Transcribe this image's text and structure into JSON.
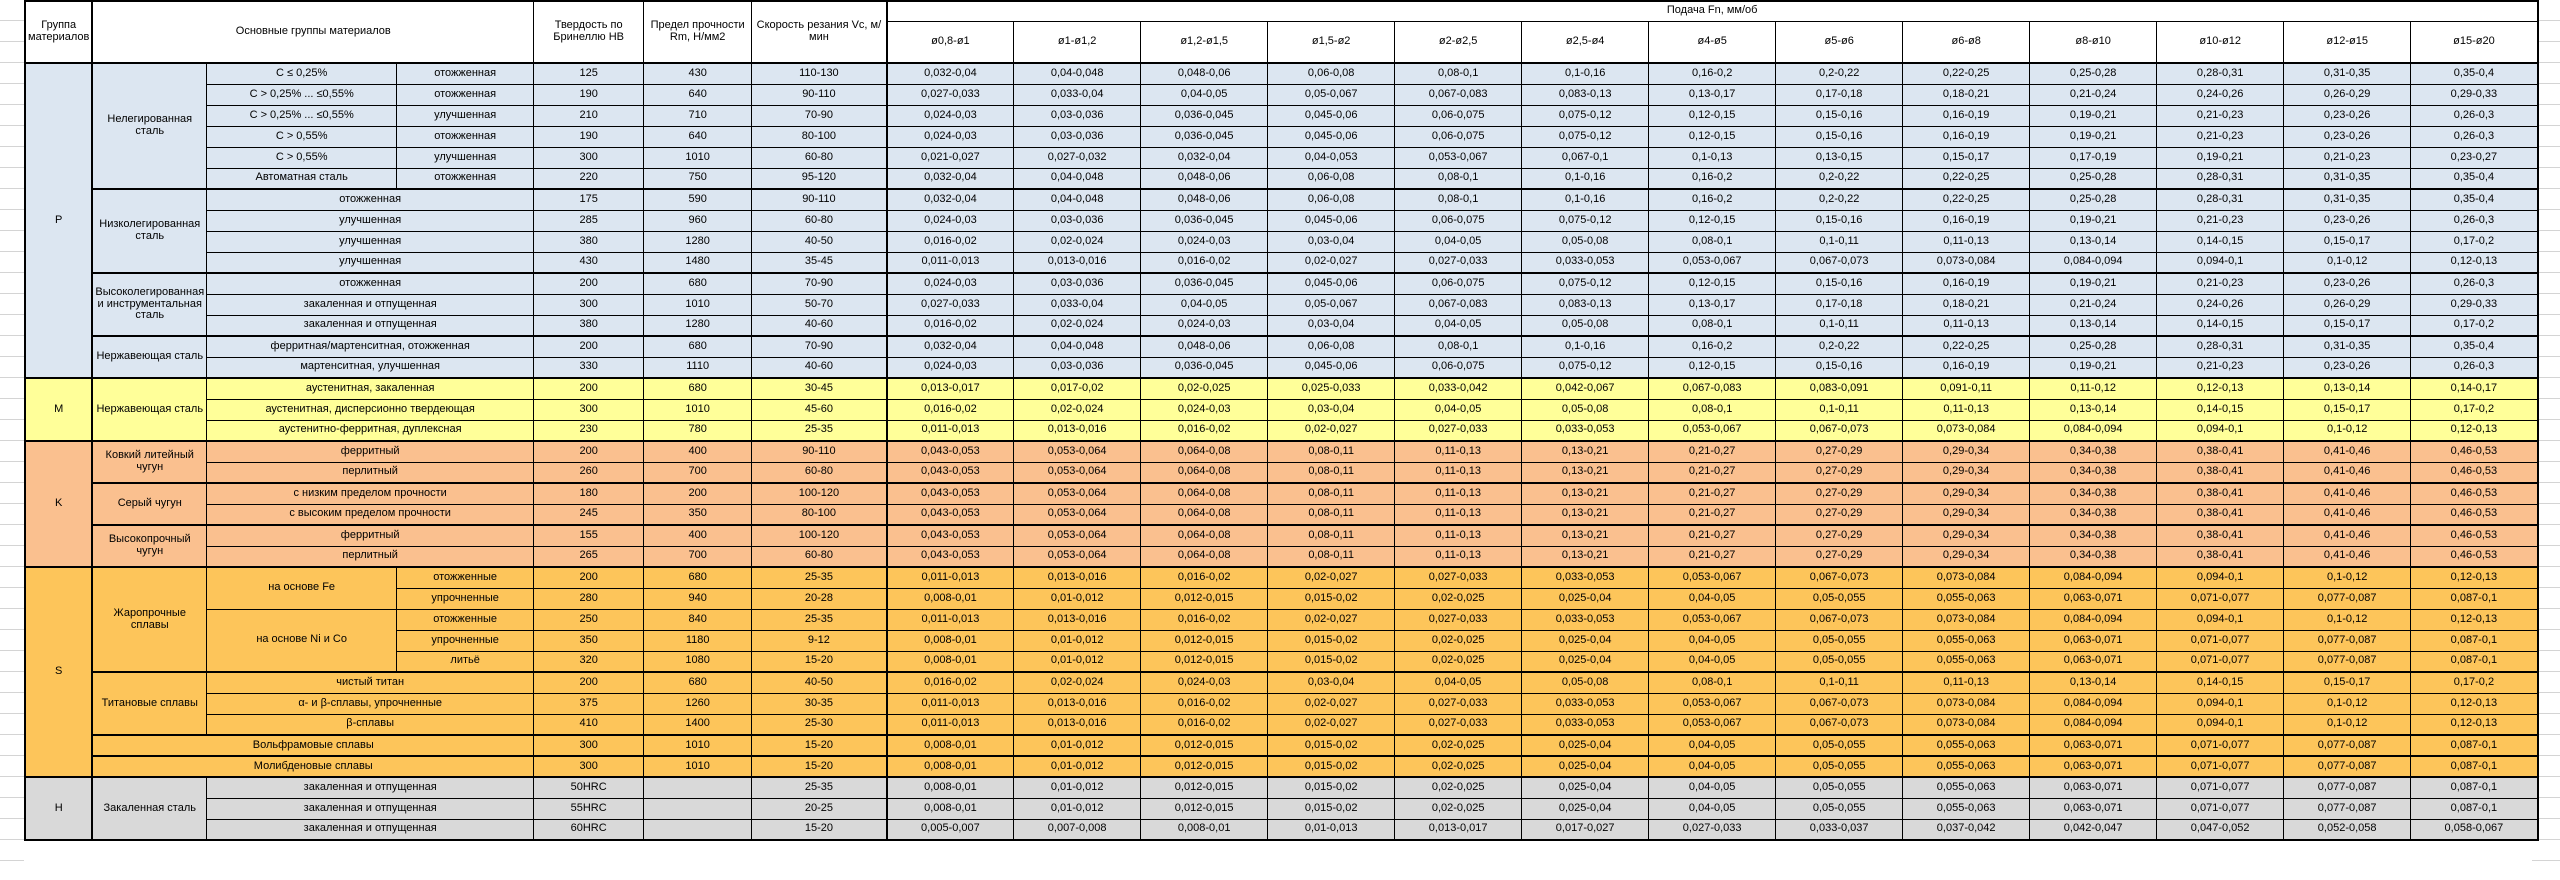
{
  "header": {
    "col_group": "Группа материалов",
    "col_materials": "Основные группы материалов",
    "col_hardness": "Твердость по Бринеллю HB",
    "col_strength": "Предел прочности Rm, Н/мм2",
    "col_speed": "Скорость резания Vc, м/мин",
    "col_feed": "Подача Fn, мм/об",
    "diameters": [
      "ø0,8-ø1",
      "ø1-ø1,2",
      "ø1,2-ø1,5",
      "ø1,5-ø2",
      "ø2-ø2,5",
      "ø2,5-ø4",
      "ø4-ø5",
      "ø5-ø6",
      "ø6-ø8",
      "ø8-ø10",
      "ø10-ø12",
      "ø12-ø15",
      "ø15-ø20"
    ]
  },
  "colors": {
    "P": "#DCE6F1",
    "M": "#FFFF99",
    "K": "#FAC08F",
    "S": "#FDC55A",
    "H": "#D9D9D9",
    "border": "#000000"
  },
  "feed_patterns": {
    "f032": [
      "0,032-0,04",
      "0,04-0,048",
      "0,048-0,06",
      "0,06-0,08",
      "0,08-0,1",
      "0,1-0,16",
      "0,16-0,2",
      "0,2-0,22",
      "0,22-0,25",
      "0,25-0,28",
      "0,28-0,31",
      "0,31-0,35",
      "0,35-0,4"
    ],
    "f027": [
      "0,027-0,033",
      "0,033-0,04",
      "0,04-0,05",
      "0,05-0,067",
      "0,067-0,083",
      "0,083-0,13",
      "0,13-0,17",
      "0,17-0,18",
      "0,18-0,21",
      "0,21-0,24",
      "0,24-0,26",
      "0,26-0,29",
      "0,29-0,33"
    ],
    "f024": [
      "0,024-0,03",
      "0,03-0,036",
      "0,036-0,045",
      "0,045-0,06",
      "0,06-0,075",
      "0,075-0,12",
      "0,12-0,15",
      "0,15-0,16",
      "0,16-0,19",
      "0,19-0,21",
      "0,21-0,23",
      "0,23-0,26",
      "0,26-0,3"
    ],
    "f021": [
      "0,021-0,027",
      "0,027-0,032",
      "0,032-0,04",
      "0,04-0,053",
      "0,053-0,067",
      "0,067-0,1",
      "0,1-0,13",
      "0,13-0,15",
      "0,15-0,17",
      "0,17-0,19",
      "0,19-0,21",
      "0,21-0,23",
      "0,23-0,27"
    ],
    "f016": [
      "0,016-0,02",
      "0,02-0,024",
      "0,024-0,03",
      "0,03-0,04",
      "0,04-0,05",
      "0,05-0,08",
      "0,08-0,1",
      "0,1-0,11",
      "0,11-0,13",
      "0,13-0,14",
      "0,14-0,15",
      "0,15-0,17",
      "0,17-0,2"
    ],
    "f013": [
      "0,013-0,017",
      "0,017-0,02",
      "0,02-0,025",
      "0,025-0,033",
      "0,033-0,042",
      "0,042-0,067",
      "0,067-0,083",
      "0,083-0,091",
      "0,091-0,11",
      "0,11-0,12",
      "0,12-0,13",
      "0,13-0,14",
      "0,14-0,17"
    ],
    "f011": [
      "0,011-0,013",
      "0,013-0,016",
      "0,016-0,02",
      "0,02-0,027",
      "0,027-0,033",
      "0,033-0,053",
      "0,053-0,067",
      "0,067-0,073",
      "0,073-0,084",
      "0,084-0,094",
      "0,094-0,1",
      "0,1-0,12",
      "0,12-0,13"
    ],
    "f043": [
      "0,043-0,053",
      "0,053-0,064",
      "0,064-0,08",
      "0,08-0,11",
      "0,11-0,13",
      "0,13-0,21",
      "0,21-0,27",
      "0,27-0,29",
      "0,29-0,34",
      "0,34-0,38",
      "0,38-0,41",
      "0,41-0,46",
      "0,46-0,53"
    ],
    "f008": [
      "0,008-0,01",
      "0,01-0,012",
      "0,012-0,015",
      "0,015-0,02",
      "0,02-0,025",
      "0,025-0,04",
      "0,04-0,05",
      "0,05-0,055",
      "0,055-0,063",
      "0,063-0,071",
      "0,071-0,077",
      "0,077-0,087",
      "0,087-0,1"
    ],
    "f005": [
      "0,005-0,007",
      "0,007-0,008",
      "0,008-0,01",
      "0,01-0,013",
      "0,013-0,017",
      "0,017-0,027",
      "0,027-0,033",
      "0,033-0,037",
      "0,037-0,042",
      "0,042-0,047",
      "0,047-0,052",
      "0,052-0,058",
      "0,058-0,067"
    ]
  },
  "groups": [
    {
      "code": "P",
      "families": [
        {
          "name": "Нелегированная сталь",
          "rows": [
            {
              "d1": "C ≤ 0,25%",
              "d2": "отожженная",
              "hb": "125",
              "rm": "430",
              "vc": "110-130",
              "f": "f032"
            },
            {
              "d1": "C > 0,25% ... ≤0,55%",
              "d2": "отожженная",
              "hb": "190",
              "rm": "640",
              "vc": "90-110",
              "f": "f027"
            },
            {
              "d1": "C > 0,25% ... ≤0,55%",
              "d2": "улучшенная",
              "hb": "210",
              "rm": "710",
              "vc": "70-90",
              "f": "f024"
            },
            {
              "d1": "C > 0,55%",
              "d2": "отожженная",
              "hb": "190",
              "rm": "640",
              "vc": "80-100",
              "f": "f024"
            },
            {
              "d1": "C > 0,55%",
              "d2": "улучшенная",
              "hb": "300",
              "rm": "1010",
              "vc": "60-80",
              "f": "f021"
            },
            {
              "d1": "Автоматная сталь",
              "d2": "отожженная",
              "hb": "220",
              "rm": "750",
              "vc": "95-120",
              "f": "f032"
            }
          ]
        },
        {
          "name": "Низколегированная сталь",
          "rows": [
            {
              "d": "отожженная",
              "hb": "175",
              "rm": "590",
              "vc": "90-110",
              "f": "f032"
            },
            {
              "d": "улучшенная",
              "hb": "285",
              "rm": "960",
              "vc": "60-80",
              "f": "f024"
            },
            {
              "d": "улучшенная",
              "hb": "380",
              "rm": "1280",
              "vc": "40-50",
              "f": "f016"
            },
            {
              "d": "улучшенная",
              "hb": "430",
              "rm": "1480",
              "vc": "35-45",
              "f": "f011"
            }
          ]
        },
        {
          "name": "Высоколегированная и инструментальная сталь",
          "rows": [
            {
              "d": "отожженная",
              "hb": "200",
              "rm": "680",
              "vc": "70-90",
              "f": "f024"
            },
            {
              "d": "закаленная и отпущенная",
              "hb": "300",
              "rm": "1010",
              "vc": "50-70",
              "f": "f027"
            },
            {
              "d": "закаленная и отпущенная",
              "hb": "380",
              "rm": "1280",
              "vc": "40-60",
              "f": "f016"
            }
          ]
        },
        {
          "name": "Нержавеющая сталь",
          "rows": [
            {
              "d": "ферритная/мартенситная, отожженная",
              "hb": "200",
              "rm": "680",
              "vc": "70-90",
              "f": "f032"
            },
            {
              "d": "мартенситная, улучшенная",
              "hb": "330",
              "rm": "1110",
              "vc": "40-60",
              "f": "f024"
            }
          ]
        }
      ]
    },
    {
      "code": "M",
      "families": [
        {
          "name": "Нержавеющая сталь",
          "rows": [
            {
              "d": "аустенитная, закаленная",
              "hb": "200",
              "rm": "680",
              "vc": "30-45",
              "f": "f013"
            },
            {
              "d": "аустенитная, дисперсионно твердеющая",
              "hb": "300",
              "rm": "1010",
              "vc": "45-60",
              "f": "f016"
            },
            {
              "d": "аустенитно-ферритная, дуплексная",
              "hb": "230",
              "rm": "780",
              "vc": "25-35",
              "f": "f011"
            }
          ]
        }
      ]
    },
    {
      "code": "K",
      "families": [
        {
          "name": "Ковкий литейный чугун",
          "rows": [
            {
              "d": "ферритный",
              "hb": "200",
              "rm": "400",
              "vc": "90-110",
              "f": "f043"
            },
            {
              "d": "перлитный",
              "hb": "260",
              "rm": "700",
              "vc": "60-80",
              "f": "f043"
            }
          ]
        },
        {
          "name": "Серый чугун",
          "rows": [
            {
              "d": "с низким пределом прочности",
              "hb": "180",
              "rm": "200",
              "vc": "100-120",
              "f": "f043"
            },
            {
              "d": "с высоким пределом прочности",
              "hb": "245",
              "rm": "350",
              "vc": "80-100",
              "f": "f043"
            }
          ]
        },
        {
          "name": "Высокопрочный чугун",
          "rows": [
            {
              "d": "ферритный",
              "hb": "155",
              "rm": "400",
              "vc": "100-120",
              "f": "f043"
            },
            {
              "d": "перлитный",
              "hb": "265",
              "rm": "700",
              "vc": "60-80",
              "f": "f043"
            }
          ]
        }
      ]
    },
    {
      "code": "S",
      "families": [
        {
          "name": "Жаропрочные сплавы",
          "rows": [
            {
              "d1": "на основе Fe",
              "d1span": 2,
              "d2": "отожженные",
              "hb": "200",
              "rm": "680",
              "vc": "25-35",
              "f": "f011"
            },
            {
              "d2": "упрочненные",
              "hb": "280",
              "rm": "940",
              "vc": "20-28",
              "f": "f008"
            },
            {
              "d1": "на основе Ni и Co",
              "d1span": 3,
              "d2": "отожженные",
              "hb": "250",
              "rm": "840",
              "vc": "25-35",
              "f": "f011"
            },
            {
              "d2": "упрочненные",
              "hb": "350",
              "rm": "1180",
              "vc": "9-12",
              "f": "f008"
            },
            {
              "d2": "литьё",
              "hb": "320",
              "rm": "1080",
              "vc": "15-20",
              "f": "f008"
            }
          ]
        },
        {
          "name": "Титановые сплавы",
          "rows": [
            {
              "d": "чистый титан",
              "hb": "200",
              "rm": "680",
              "vc": "40-50",
              "f": "f016"
            },
            {
              "d": "α- и β-сплавы, упрочненные",
              "hb": "375",
              "rm": "1260",
              "vc": "30-35",
              "f": "f011"
            },
            {
              "d": "β-сплавы",
              "hb": "410",
              "rm": "1400",
              "vc": "25-30",
              "f": "f011"
            }
          ]
        },
        {
          "name": null,
          "rows": [
            {
              "dfull": "Вольфрамовые сплавы",
              "hb": "300",
              "rm": "1010",
              "vc": "15-20",
              "f": "f008"
            }
          ]
        },
        {
          "name": null,
          "rows": [
            {
              "dfull": "Молибденовые сплавы",
              "hb": "300",
              "rm": "1010",
              "vc": "15-20",
              "f": "f008"
            }
          ]
        }
      ]
    },
    {
      "code": "H",
      "families": [
        {
          "name": "Закаленная сталь",
          "rows": [
            {
              "d": "закаленная и отпущенная",
              "hb": "50HRC",
              "rm": "",
              "vc": "25-35",
              "f": "f008"
            },
            {
              "d": "закаленная и отпущенная",
              "hb": "55HRC",
              "rm": "",
              "vc": "20-25",
              "f": "f008"
            },
            {
              "d": "закаленная и отпущенная",
              "hb": "60HRC",
              "rm": "",
              "vc": "15-20",
              "f": "f005"
            }
          ]
        }
      ]
    }
  ]
}
